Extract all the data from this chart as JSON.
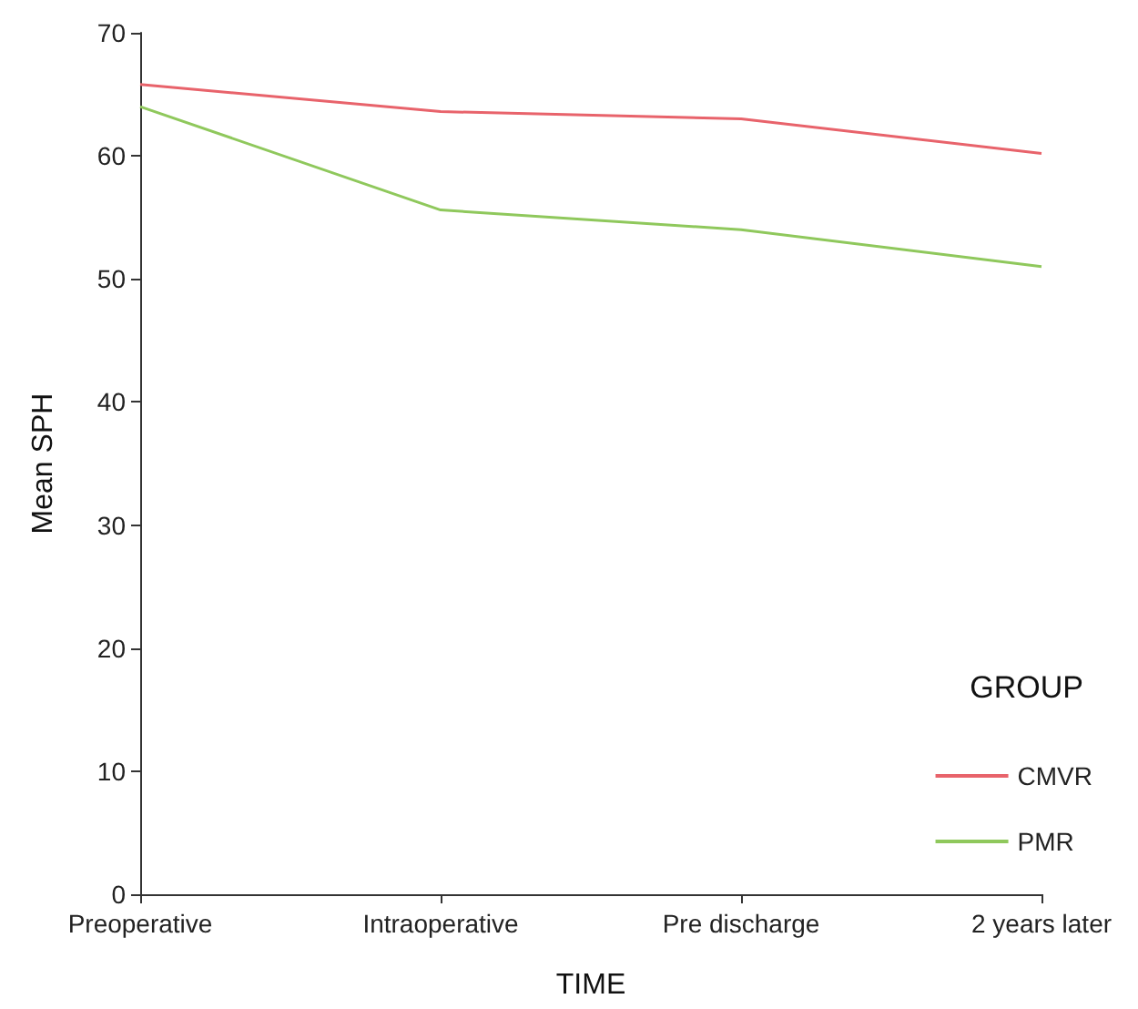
{
  "chart_data": {
    "type": "line",
    "xlabel": "TIME",
    "ylabel": "Mean SPH",
    "legend_title": "GROUP",
    "categories": [
      "Preoperative",
      "Intraoperative",
      "Pre discharge",
      "2 years later"
    ],
    "series": [
      {
        "name": "CMVR",
        "color": "#e8636b",
        "values": [
          65.8,
          63.6,
          63.0,
          60.2
        ]
      },
      {
        "name": "PMR",
        "color": "#8fc85c",
        "values": [
          64.0,
          55.6,
          54.0,
          51.0
        ]
      }
    ],
    "ylim": [
      0,
      70
    ],
    "yticks": [
      0,
      10,
      20,
      30,
      40,
      50,
      60,
      70
    ],
    "grid": false,
    "legend": "bottom right",
    "marker": "none",
    "line_style": "solid"
  }
}
